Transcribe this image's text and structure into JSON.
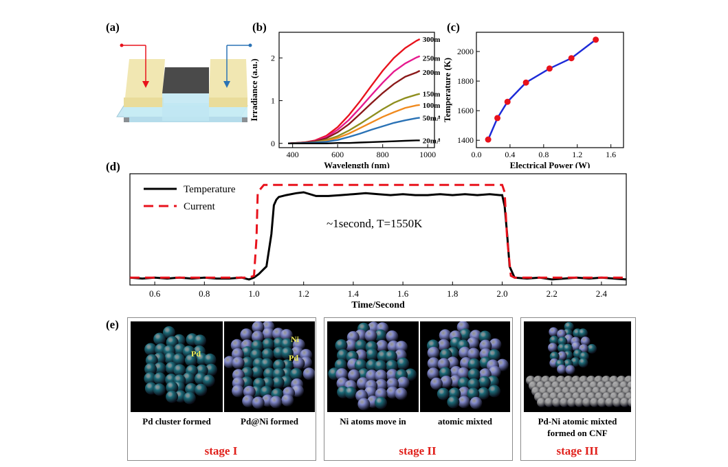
{
  "panels": {
    "a": {
      "label": "(a)"
    },
    "b": {
      "label": "(b)"
    },
    "c": {
      "label": "(c)"
    },
    "d": {
      "label": "(d)",
      "annotation": "~1second, T=1550K"
    },
    "e": {
      "label": "(e)"
    }
  },
  "chart_data": [
    {
      "id": "b",
      "type": "line",
      "xlabel": "Wavelength (nm)",
      "ylabel": "Irradiance (a.u.)",
      "xlim": [
        340,
        1030
      ],
      "ylim": [
        -0.1,
        2.6
      ],
      "xticks": [
        400,
        600,
        800,
        1000
      ],
      "yticks": [
        0,
        1,
        2
      ],
      "x": [
        380,
        450,
        500,
        550,
        600,
        650,
        700,
        750,
        800,
        850,
        900,
        950,
        965
      ],
      "series": [
        {
          "name": "300mA",
          "color": "#e8121c",
          "values": [
            0,
            0.02,
            0.07,
            0.18,
            0.38,
            0.66,
            0.99,
            1.35,
            1.7,
            2.0,
            2.23,
            2.4,
            2.44
          ]
        },
        {
          "name": "250mA",
          "color": "#e6198e",
          "values": [
            0,
            0.02,
            0.06,
            0.15,
            0.32,
            0.55,
            0.83,
            1.13,
            1.42,
            1.68,
            1.87,
            2.01,
            2.04
          ]
        },
        {
          "name": "200mA",
          "color": "#8b1a1a",
          "values": [
            0,
            0.02,
            0.05,
            0.12,
            0.26,
            0.45,
            0.69,
            0.94,
            1.18,
            1.39,
            1.56,
            1.66,
            1.7
          ]
        },
        {
          "name": "150mA",
          "color": "#8f8f1f",
          "values": [
            0,
            0.01,
            0.03,
            0.08,
            0.17,
            0.3,
            0.46,
            0.63,
            0.8,
            0.95,
            1.06,
            1.14,
            1.16
          ]
        },
        {
          "name": "100mA",
          "color": "#f08a1e",
          "values": [
            0,
            0.01,
            0.02,
            0.06,
            0.13,
            0.23,
            0.36,
            0.49,
            0.62,
            0.73,
            0.83,
            0.89,
            0.9
          ]
        },
        {
          "name": "50mA",
          "color": "#2a72b5",
          "values": [
            0,
            0.01,
            0.02,
            0.04,
            0.08,
            0.15,
            0.23,
            0.32,
            0.4,
            0.48,
            0.54,
            0.59,
            0.6
          ]
        },
        {
          "name": "20mA",
          "color": "#000000",
          "values": [
            0,
            0.0,
            0.0,
            0.0,
            0.01,
            0.01,
            0.02,
            0.03,
            0.04,
            0.05,
            0.06,
            0.07,
            0.07
          ]
        }
      ]
    },
    {
      "id": "c",
      "type": "line",
      "xlabel": "Electrical Power (W)",
      "ylabel": "Temperature (K)",
      "xlim": [
        0.0,
        1.75
      ],
      "ylim": [
        1350,
        2130
      ],
      "xticks": [
        0.0,
        0.4,
        0.8,
        1.2,
        1.6
      ],
      "yticks": [
        1400,
        1600,
        1800,
        2000
      ],
      "x": [
        0.14,
        0.25,
        0.37,
        0.59,
        0.87,
        1.13,
        1.42
      ],
      "series": [
        {
          "values": [
            1405,
            1550,
            1660,
            1790,
            1885,
            1955,
            2080
          ],
          "color": "#1d2bd8",
          "marker_color": "#e8121c"
        }
      ]
    },
    {
      "id": "d",
      "type": "line",
      "xlabel": "Time/Second",
      "xlim": [
        0.5,
        2.5
      ],
      "xticks": [
        0.6,
        0.8,
        1.0,
        1.2,
        1.4,
        1.6,
        1.8,
        2.0,
        2.2,
        2.4
      ],
      "ylim": [
        0,
        1.2
      ],
      "series": [
        {
          "name": "Temperature",
          "color": "#000000",
          "style": "solid",
          "x": [
            0.5,
            0.55,
            0.6,
            0.65,
            0.7,
            0.75,
            0.8,
            0.85,
            0.9,
            0.95,
            0.98,
            1.0,
            1.02,
            1.05,
            1.07,
            1.08,
            1.09,
            1.1,
            1.13,
            1.17,
            1.2,
            1.25,
            1.3,
            1.35,
            1.4,
            1.45,
            1.5,
            1.55,
            1.6,
            1.65,
            1.7,
            1.75,
            1.8,
            1.85,
            1.9,
            1.95,
            1.99,
            2.0,
            2.01,
            2.02,
            2.03,
            2.05,
            2.1,
            2.15,
            2.2,
            2.25,
            2.3,
            2.35,
            2.4,
            2.45,
            2.5
          ],
          "values": [
            0.08,
            0.07,
            0.08,
            0.07,
            0.08,
            0.07,
            0.08,
            0.07,
            0.07,
            0.08,
            0.06,
            0.08,
            0.12,
            0.2,
            0.55,
            0.86,
            0.92,
            0.95,
            0.97,
            0.99,
            1.0,
            0.96,
            0.96,
            0.97,
            0.98,
            0.99,
            0.98,
            0.97,
            0.98,
            0.97,
            0.97,
            0.98,
            0.97,
            0.98,
            0.97,
            0.98,
            0.97,
            0.97,
            0.85,
            0.55,
            0.2,
            0.08,
            0.07,
            0.08,
            0.06,
            0.07,
            0.08,
            0.07,
            0.08,
            0.07,
            0.06
          ]
        },
        {
          "name": "Current",
          "color": "#e8121c",
          "style": "dashed",
          "x": [
            0.5,
            0.98,
            1.0,
            1.01,
            1.015,
            1.04,
            2.0,
            2.01,
            2.02,
            2.035,
            2.05,
            2.5
          ],
          "values": [
            0.08,
            0.08,
            0.1,
            0.5,
            1.0,
            1.08,
            1.08,
            1.0,
            0.5,
            0.1,
            0.08,
            0.08
          ]
        }
      ]
    }
  ],
  "stages": [
    {
      "name": "stage I",
      "captions": [
        "Pd cluster formed",
        "Pd@Ni formed"
      ],
      "tags": [
        "Pd",
        "Ni",
        "Pd"
      ]
    },
    {
      "name": "stage II",
      "captions": [
        "Ni atoms move in",
        "atomic mixted"
      ]
    },
    {
      "name": "stage III",
      "caption_line1": "Pd-Ni atomic mixted",
      "caption_line2": "formed on CNF"
    }
  ],
  "colors": {
    "pd_atom": "#1c6a78",
    "ni_atom": "#7f86c8",
    "carbon_atom": "#9a9a9a",
    "stage_label": "#e0201b",
    "current_arrow": "#e8121c",
    "voltage_arrow": "#2a72b5"
  }
}
